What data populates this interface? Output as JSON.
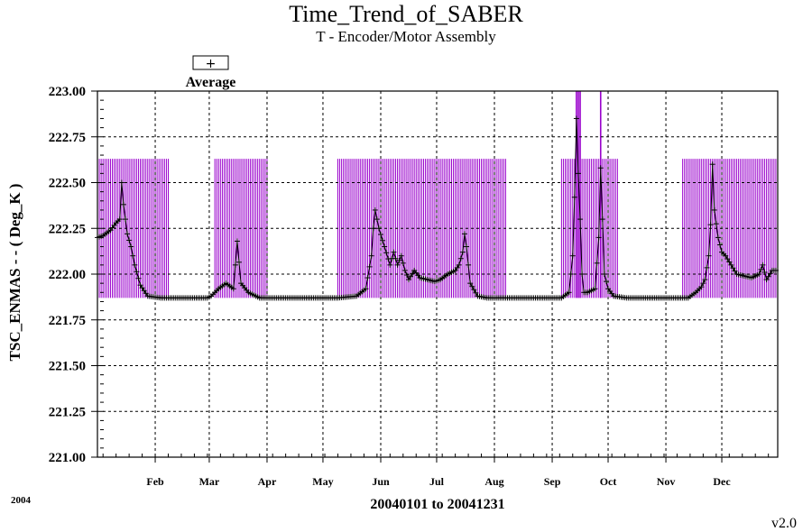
{
  "chart_data": {
    "type": "line",
    "title": "Time_Trend_of_SABER",
    "subtitle": "T - Encoder/Motor Assembly",
    "ylabel": "TSC_ENMAS  - - ( Deg_K )",
    "xlabel": "20040101 to 20041231",
    "year_label": "2004",
    "version": "v2.0",
    "ylim": [
      221.0,
      223.0
    ],
    "xlim": [
      1,
      366
    ],
    "grid": true,
    "y_ticks": [
      "221.00",
      "221.25",
      "221.50",
      "221.75",
      "222.00",
      "222.25",
      "222.50",
      "222.75",
      "223.00"
    ],
    "x_ticks": [
      {
        "label": "Feb",
        "day": 32
      },
      {
        "label": "Mar",
        "day": 61
      },
      {
        "label": "Apr",
        "day": 92
      },
      {
        "label": "May",
        "day": 122
      },
      {
        "label": "Jun",
        "day": 153
      },
      {
        "label": "Jul",
        "day": 183
      },
      {
        "label": "Aug",
        "day": 214
      },
      {
        "label": "Sep",
        "day": 245
      },
      {
        "label": "Oct",
        "day": 275
      },
      {
        "label": "Nov",
        "day": 306
      },
      {
        "label": "Dec",
        "day": 336
      }
    ],
    "legend": {
      "symbol": "+",
      "label": "Average",
      "placement": "top-left"
    },
    "series": [
      {
        "name": "Average",
        "color": "#000000",
        "marker": "+",
        "points": [
          [
            1,
            222.2
          ],
          [
            4,
            222.21
          ],
          [
            8,
            222.24
          ],
          [
            11,
            222.28
          ],
          [
            13,
            222.3
          ],
          [
            14,
            222.5
          ],
          [
            15,
            222.38
          ],
          [
            17,
            222.22
          ],
          [
            19,
            222.15
          ],
          [
            21,
            222.05
          ],
          [
            24,
            221.94
          ],
          [
            28,
            221.88
          ],
          [
            35,
            221.87
          ],
          [
            60,
            221.87
          ],
          [
            62,
            221.88
          ],
          [
            66,
            221.92
          ],
          [
            70,
            221.95
          ],
          [
            74,
            221.92
          ],
          [
            76,
            222.18
          ],
          [
            78,
            221.95
          ],
          [
            82,
            221.9
          ],
          [
            88,
            221.87
          ],
          [
            130,
            221.87
          ],
          [
            140,
            221.88
          ],
          [
            145,
            221.92
          ],
          [
            148,
            222.1
          ],
          [
            149,
            222.25
          ],
          [
            150,
            222.35
          ],
          [
            152,
            222.25
          ],
          [
            155,
            222.15
          ],
          [
            158,
            222.05
          ],
          [
            160,
            222.12
          ],
          [
            162,
            222.05
          ],
          [
            164,
            222.1
          ],
          [
            166,
            222.02
          ],
          [
            168,
            221.97
          ],
          [
            171,
            222.02
          ],
          [
            174,
            221.98
          ],
          [
            178,
            221.97
          ],
          [
            182,
            221.96
          ],
          [
            185,
            221.97
          ],
          [
            189,
            222.0
          ],
          [
            193,
            222.02
          ],
          [
            195,
            222.05
          ],
          [
            197,
            222.12
          ],
          [
            198,
            222.22
          ],
          [
            199,
            222.15
          ],
          [
            201,
            221.95
          ],
          [
            205,
            221.88
          ],
          [
            210,
            221.87
          ],
          [
            250,
            221.87
          ],
          [
            254,
            221.9
          ],
          [
            256,
            222.1
          ],
          [
            257,
            222.42
          ],
          [
            258,
            222.85
          ],
          [
            259,
            222.55
          ],
          [
            260,
            222.3
          ],
          [
            261,
            222.0
          ],
          [
            262,
            221.9
          ],
          [
            264,
            221.9
          ],
          [
            268,
            221.92
          ],
          [
            270,
            222.2
          ],
          [
            271,
            222.58
          ],
          [
            272,
            222.3
          ],
          [
            273,
            222.0
          ],
          [
            275,
            221.92
          ],
          [
            278,
            221.88
          ],
          [
            285,
            221.87
          ],
          [
            318,
            221.87
          ],
          [
            322,
            221.9
          ],
          [
            325,
            221.93
          ],
          [
            327,
            221.97
          ],
          [
            329,
            222.1
          ],
          [
            330,
            222.27
          ],
          [
            331,
            222.6
          ],
          [
            332,
            222.35
          ],
          [
            334,
            222.2
          ],
          [
            336,
            222.12
          ],
          [
            338,
            222.1
          ],
          [
            341,
            222.05
          ],
          [
            344,
            222.0
          ],
          [
            348,
            221.99
          ],
          [
            352,
            221.98
          ],
          [
            356,
            222.0
          ],
          [
            358,
            222.05
          ],
          [
            360,
            221.97
          ],
          [
            363,
            222.02
          ],
          [
            366,
            222.02
          ]
        ]
      }
    ],
    "bands": [
      {
        "color": "#9900cc",
        "from_day": 1,
        "to_day": 39,
        "ymin": 221.87,
        "ymax": 222.63
      },
      {
        "color": "#9900cc",
        "from_day": 64,
        "to_day": 92,
        "ymin": 221.87,
        "ymax": 222.63
      },
      {
        "color": "#9900cc",
        "from_day": 130,
        "to_day": 220,
        "ymin": 221.87,
        "ymax": 222.63
      },
      {
        "color": "#9900cc",
        "from_day": 250,
        "to_day": 280,
        "ymin": 221.87,
        "ymax": 222.63
      },
      {
        "color": "#9900cc",
        "from_day": 315,
        "to_day": 366,
        "ymin": 221.87,
        "ymax": 222.63
      }
    ],
    "spikes": [
      {
        "color": "#9900cc",
        "day": 258,
        "ymin": 221.87,
        "ymax": 223.0
      },
      {
        "color": "#9900cc",
        "day": 259,
        "ymin": 221.87,
        "ymax": 223.0
      },
      {
        "color": "#9900cc",
        "day": 260,
        "ymin": 221.87,
        "ymax": 223.0
      },
      {
        "color": "#9900cc",
        "day": 271,
        "ymin": 221.87,
        "ymax": 223.0
      }
    ]
  }
}
